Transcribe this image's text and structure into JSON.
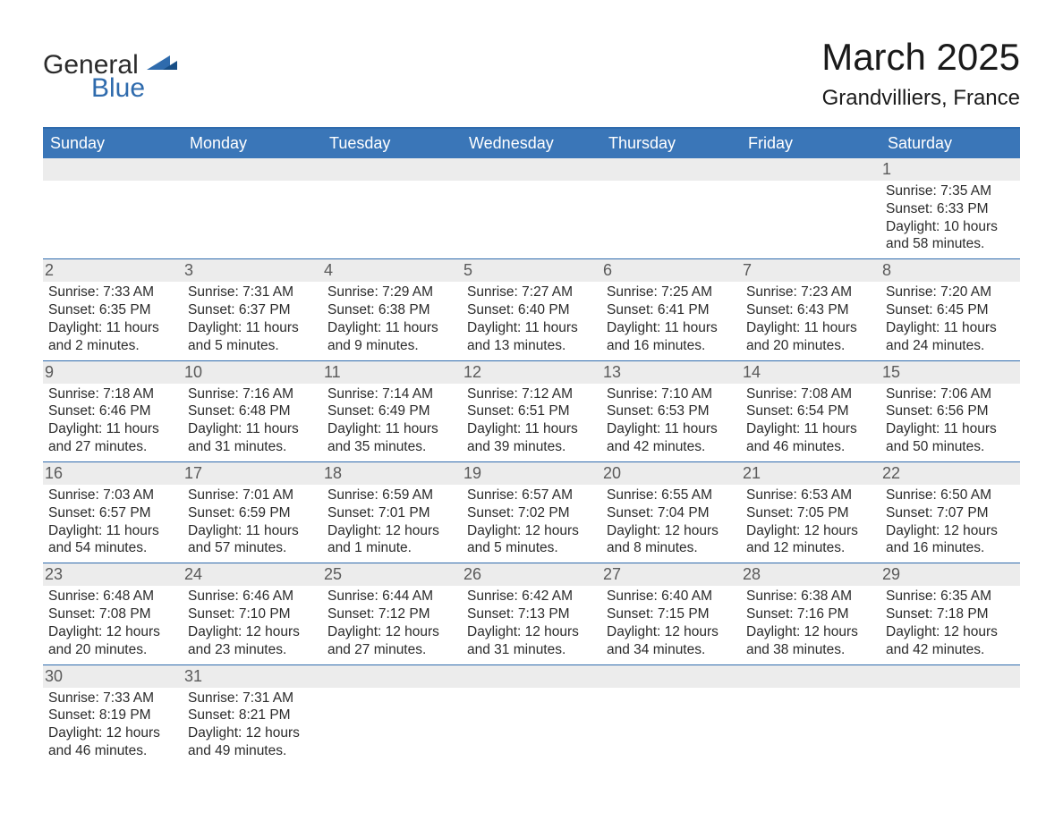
{
  "logo": {
    "text1": "General",
    "text2": "Blue"
  },
  "title": {
    "month": "March 2025",
    "location": "Grandvilliers, France"
  },
  "colors": {
    "header_bg": "#3a76b8",
    "header_text": "#ffffff",
    "border": "#2f6bad",
    "daynum_bg": "#ececec",
    "daynum_text": "#5a5a5a",
    "body_text": "#2b2b2b",
    "logo_dark": "#2b2b2b",
    "logo_blue": "#2f6bad",
    "background": "#ffffff"
  },
  "typography": {
    "title_fontsize": 42,
    "location_fontsize": 24,
    "header_fontsize": 18,
    "daynum_fontsize": 18,
    "body_fontsize": 15.5,
    "logo_fontsize": 30,
    "family": "Arial, Helvetica, sans-serif"
  },
  "layout": {
    "columns": 7,
    "rows": 6,
    "first_day_col_index": 6,
    "day_count": 31
  },
  "weekdays": [
    "Sunday",
    "Monday",
    "Tuesday",
    "Wednesday",
    "Thursday",
    "Friday",
    "Saturday"
  ],
  "days": [
    {
      "num": "1",
      "sunrise": "Sunrise: 7:35 AM",
      "sunset": "Sunset: 6:33 PM",
      "daylight1": "Daylight: 10 hours",
      "daylight2": "and 58 minutes."
    },
    {
      "num": "2",
      "sunrise": "Sunrise: 7:33 AM",
      "sunset": "Sunset: 6:35 PM",
      "daylight1": "Daylight: 11 hours",
      "daylight2": "and 2 minutes."
    },
    {
      "num": "3",
      "sunrise": "Sunrise: 7:31 AM",
      "sunset": "Sunset: 6:37 PM",
      "daylight1": "Daylight: 11 hours",
      "daylight2": "and 5 minutes."
    },
    {
      "num": "4",
      "sunrise": "Sunrise: 7:29 AM",
      "sunset": "Sunset: 6:38 PM",
      "daylight1": "Daylight: 11 hours",
      "daylight2": "and 9 minutes."
    },
    {
      "num": "5",
      "sunrise": "Sunrise: 7:27 AM",
      "sunset": "Sunset: 6:40 PM",
      "daylight1": "Daylight: 11 hours",
      "daylight2": "and 13 minutes."
    },
    {
      "num": "6",
      "sunrise": "Sunrise: 7:25 AM",
      "sunset": "Sunset: 6:41 PM",
      "daylight1": "Daylight: 11 hours",
      "daylight2": "and 16 minutes."
    },
    {
      "num": "7",
      "sunrise": "Sunrise: 7:23 AM",
      "sunset": "Sunset: 6:43 PM",
      "daylight1": "Daylight: 11 hours",
      "daylight2": "and 20 minutes."
    },
    {
      "num": "8",
      "sunrise": "Sunrise: 7:20 AM",
      "sunset": "Sunset: 6:45 PM",
      "daylight1": "Daylight: 11 hours",
      "daylight2": "and 24 minutes."
    },
    {
      "num": "9",
      "sunrise": "Sunrise: 7:18 AM",
      "sunset": "Sunset: 6:46 PM",
      "daylight1": "Daylight: 11 hours",
      "daylight2": "and 27 minutes."
    },
    {
      "num": "10",
      "sunrise": "Sunrise: 7:16 AM",
      "sunset": "Sunset: 6:48 PM",
      "daylight1": "Daylight: 11 hours",
      "daylight2": "and 31 minutes."
    },
    {
      "num": "11",
      "sunrise": "Sunrise: 7:14 AM",
      "sunset": "Sunset: 6:49 PM",
      "daylight1": "Daylight: 11 hours",
      "daylight2": "and 35 minutes."
    },
    {
      "num": "12",
      "sunrise": "Sunrise: 7:12 AM",
      "sunset": "Sunset: 6:51 PM",
      "daylight1": "Daylight: 11 hours",
      "daylight2": "and 39 minutes."
    },
    {
      "num": "13",
      "sunrise": "Sunrise: 7:10 AM",
      "sunset": "Sunset: 6:53 PM",
      "daylight1": "Daylight: 11 hours",
      "daylight2": "and 42 minutes."
    },
    {
      "num": "14",
      "sunrise": "Sunrise: 7:08 AM",
      "sunset": "Sunset: 6:54 PM",
      "daylight1": "Daylight: 11 hours",
      "daylight2": "and 46 minutes."
    },
    {
      "num": "15",
      "sunrise": "Sunrise: 7:06 AM",
      "sunset": "Sunset: 6:56 PM",
      "daylight1": "Daylight: 11 hours",
      "daylight2": "and 50 minutes."
    },
    {
      "num": "16",
      "sunrise": "Sunrise: 7:03 AM",
      "sunset": "Sunset: 6:57 PM",
      "daylight1": "Daylight: 11 hours",
      "daylight2": "and 54 minutes."
    },
    {
      "num": "17",
      "sunrise": "Sunrise: 7:01 AM",
      "sunset": "Sunset: 6:59 PM",
      "daylight1": "Daylight: 11 hours",
      "daylight2": "and 57 minutes."
    },
    {
      "num": "18",
      "sunrise": "Sunrise: 6:59 AM",
      "sunset": "Sunset: 7:01 PM",
      "daylight1": "Daylight: 12 hours",
      "daylight2": "and 1 minute."
    },
    {
      "num": "19",
      "sunrise": "Sunrise: 6:57 AM",
      "sunset": "Sunset: 7:02 PM",
      "daylight1": "Daylight: 12 hours",
      "daylight2": "and 5 minutes."
    },
    {
      "num": "20",
      "sunrise": "Sunrise: 6:55 AM",
      "sunset": "Sunset: 7:04 PM",
      "daylight1": "Daylight: 12 hours",
      "daylight2": "and 8 minutes."
    },
    {
      "num": "21",
      "sunrise": "Sunrise: 6:53 AM",
      "sunset": "Sunset: 7:05 PM",
      "daylight1": "Daylight: 12 hours",
      "daylight2": "and 12 minutes."
    },
    {
      "num": "22",
      "sunrise": "Sunrise: 6:50 AM",
      "sunset": "Sunset: 7:07 PM",
      "daylight1": "Daylight: 12 hours",
      "daylight2": "and 16 minutes."
    },
    {
      "num": "23",
      "sunrise": "Sunrise: 6:48 AM",
      "sunset": "Sunset: 7:08 PM",
      "daylight1": "Daylight: 12 hours",
      "daylight2": "and 20 minutes."
    },
    {
      "num": "24",
      "sunrise": "Sunrise: 6:46 AM",
      "sunset": "Sunset: 7:10 PM",
      "daylight1": "Daylight: 12 hours",
      "daylight2": "and 23 minutes."
    },
    {
      "num": "25",
      "sunrise": "Sunrise: 6:44 AM",
      "sunset": "Sunset: 7:12 PM",
      "daylight1": "Daylight: 12 hours",
      "daylight2": "and 27 minutes."
    },
    {
      "num": "26",
      "sunrise": "Sunrise: 6:42 AM",
      "sunset": "Sunset: 7:13 PM",
      "daylight1": "Daylight: 12 hours",
      "daylight2": "and 31 minutes."
    },
    {
      "num": "27",
      "sunrise": "Sunrise: 6:40 AM",
      "sunset": "Sunset: 7:15 PM",
      "daylight1": "Daylight: 12 hours",
      "daylight2": "and 34 minutes."
    },
    {
      "num": "28",
      "sunrise": "Sunrise: 6:38 AM",
      "sunset": "Sunset: 7:16 PM",
      "daylight1": "Daylight: 12 hours",
      "daylight2": "and 38 minutes."
    },
    {
      "num": "29",
      "sunrise": "Sunrise: 6:35 AM",
      "sunset": "Sunset: 7:18 PM",
      "daylight1": "Daylight: 12 hours",
      "daylight2": "and 42 minutes."
    },
    {
      "num": "30",
      "sunrise": "Sunrise: 7:33 AM",
      "sunset": "Sunset: 8:19 PM",
      "daylight1": "Daylight: 12 hours",
      "daylight2": "and 46 minutes."
    },
    {
      "num": "31",
      "sunrise": "Sunrise: 7:31 AM",
      "sunset": "Sunset: 8:21 PM",
      "daylight1": "Daylight: 12 hours",
      "daylight2": "and 49 minutes."
    }
  ]
}
